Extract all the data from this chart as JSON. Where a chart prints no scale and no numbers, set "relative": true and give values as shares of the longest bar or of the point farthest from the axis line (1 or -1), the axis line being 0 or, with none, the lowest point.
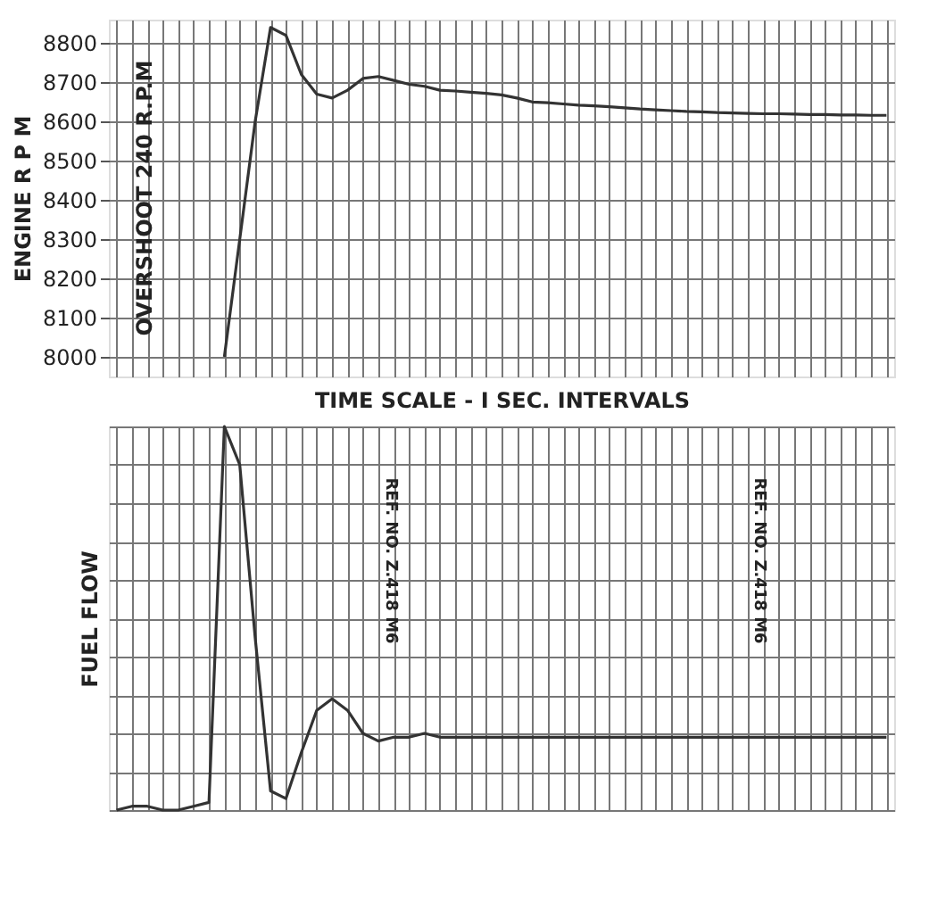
{
  "chart_data": [
    {
      "type": "line",
      "ylabel": "ENGINE R P M",
      "xlabel": "TIME SCALE - I SEC. INTERVALS",
      "categories": [
        null,
        null,
        null,
        null,
        null,
        null,
        null,
        null,
        null,
        null,
        null,
        null,
        null,
        null,
        null,
        null,
        null,
        null,
        null,
        null,
        null,
        null,
        null,
        null,
        null,
        null,
        null,
        null,
        null,
        null,
        null,
        null,
        null,
        null,
        null,
        null,
        null,
        null,
        null,
        null,
        null,
        null,
        null,
        null,
        null,
        null,
        null,
        null,
        null,
        null,
        null
      ],
      "series": [
        {
          "color": "#333333",
          "values": [
            null,
            null,
            null,
            null,
            null,
            null,
            null,
            8000,
            8300,
            8600,
            8840,
            8820,
            8720,
            8670,
            8660,
            8680,
            8710,
            8715,
            8705,
            8695,
            8690,
            8680,
            8678,
            8675,
            8672,
            8668,
            8660,
            8650,
            8648,
            8645,
            8642,
            8640,
            8638,
            8635,
            8632,
            8630,
            8628,
            8626,
            8625,
            8623,
            8622,
            8621,
            8620,
            8620,
            8619,
            8618,
            8618,
            8617,
            8617,
            8616,
            8616
          ]
        }
      ],
      "ylim": [
        7950,
        8860
      ],
      "yticks": [
        8000,
        8100,
        8200,
        8300,
        8400,
        8500,
        8600,
        8700,
        8800
      ],
      "grid": true,
      "tick_labels": "y",
      "annotations": [
        "OVERSHOOT 240 R.P.M"
      ]
    },
    {
      "type": "line",
      "ylabel": "FUEL FLOW",
      "relative": true,
      "categories": [
        null,
        null,
        null,
        null,
        null,
        null,
        null,
        null,
        null,
        null,
        null,
        null,
        null,
        null,
        null,
        null,
        null,
        null,
        null,
        null,
        null,
        null,
        null,
        null,
        null,
        null,
        null,
        null,
        null,
        null,
        null,
        null,
        null,
        null,
        null,
        null,
        null,
        null,
        null,
        null,
        null,
        null,
        null,
        null,
        null,
        null,
        null,
        null,
        null,
        null,
        null
      ],
      "series": [
        {
          "color": "#333333",
          "values": [
            0,
            0.01,
            0.01,
            0,
            0,
            0.01,
            0.02,
            1.0,
            0.9,
            0.45,
            0.05,
            0.03,
            0.15,
            0.26,
            0.29,
            0.26,
            0.2,
            0.18,
            0.19,
            0.19,
            0.2,
            0.19,
            0.19,
            0.19,
            0.19,
            0.19,
            0.19,
            0.19,
            0.19,
            0.19,
            0.19,
            0.19,
            0.19,
            0.19,
            0.19,
            0.19,
            0.19,
            0.19,
            0.19,
            0.19,
            0.19,
            0.19,
            0.19,
            0.19,
            0.19,
            0.19,
            0.19,
            0.19,
            0.19,
            0.19,
            0.19
          ]
        }
      ],
      "grid": true,
      "tick_labels": false,
      "annotations": [
        "REF. NO. Z.418 M6",
        "REF. NO. Z.418 M6"
      ]
    }
  ]
}
